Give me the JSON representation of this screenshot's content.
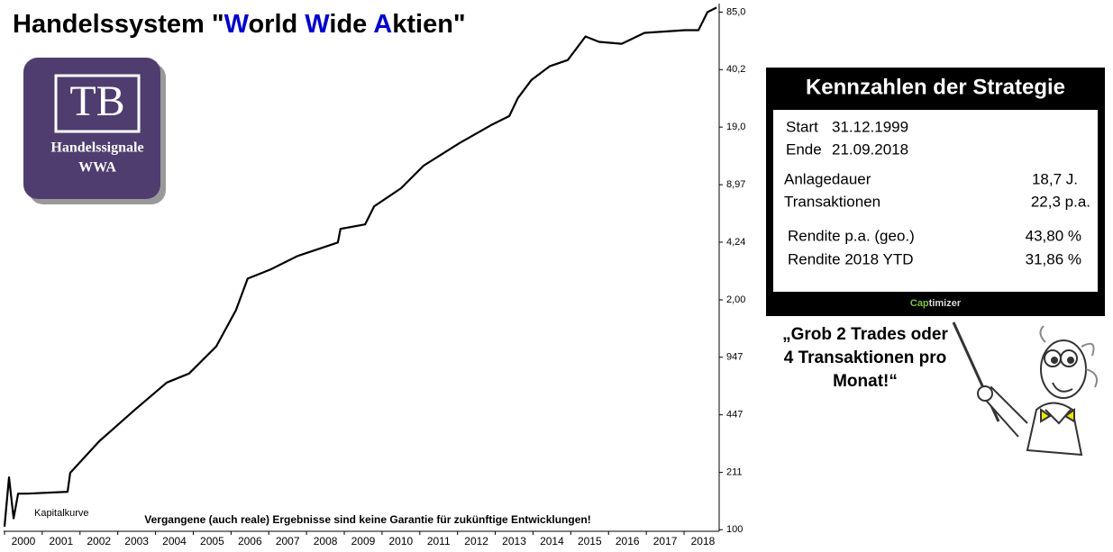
{
  "chart_data": {
    "type": "line",
    "title_parts": [
      "Handelssystem \"",
      "W",
      "orld ",
      "W",
      "ide ",
      "A",
      "ktien\""
    ],
    "title_highlight": [
      false,
      true,
      false,
      true,
      false,
      true,
      false
    ],
    "title_highlight_color": "#0000cc",
    "x": [
      2000.0,
      2000.12,
      2000.24,
      2000.36,
      2000.6,
      2001.67,
      2001.74,
      2002.51,
      2003.46,
      2004.3,
      2004.89,
      2005.61,
      2006.13,
      2006.44,
      2007.04,
      2007.76,
      2008.83,
      2008.9,
      2009.55,
      2009.79,
      2010.5,
      2011.1,
      2012.05,
      2012.89,
      2013.37,
      2013.6,
      2013.96,
      2014.44,
      2014.92,
      2015.39,
      2015.75,
      2016.35,
      2016.95,
      2018.02,
      2018.38,
      2018.62,
      2018.86
    ],
    "series": [
      {
        "name": "Kapitalkurve",
        "color": "#000000",
        "values": [
          104,
          198,
          116,
          160,
          160,
          164,
          210,
          317,
          479,
          681,
          766,
          1091,
          1747,
          2638,
          2967,
          3540,
          4225,
          5040,
          5346,
          6763,
          8556,
          11490,
          15420,
          19500,
          21950,
          27780,
          35160,
          41970,
          45520,
          61880,
          57660,
          56260,
          64860,
          67170,
          67170,
          84980,
          90190
        ]
      }
    ],
    "xlim": [
      2000,
      2018.93
    ],
    "xticks": [
      2000,
      2001,
      2002,
      2003,
      2004,
      2005,
      2006,
      2007,
      2008,
      2009,
      2010,
      2011,
      2012,
      2013,
      2014,
      2015,
      2016,
      2017,
      2018
    ],
    "ylim": [
      98,
      95000
    ],
    "log_y": true,
    "yticks": [
      100,
      211,
      447,
      947,
      {
        "value": 2000,
        "label": "2,00"
      },
      {
        "value": 4240,
        "label": "4,24"
      },
      {
        "value": 8970,
        "label": "8,97"
      },
      {
        "value": 19000,
        "label": "19,0"
      },
      {
        "value": 40200,
        "label": "40,2"
      },
      {
        "value": 85000,
        "label": "85,0"
      }
    ],
    "disclaimer": "Vergangene (auch reale) Ergebnisse sind keine Garantie für zukünftige Entwicklungen!"
  },
  "logo": {
    "initials": "TB",
    "line1": "Handelssignale",
    "line2": "WWA"
  },
  "panel": {
    "title": "Kennzahlen der Strategie",
    "rows": [
      [
        "Start",
        "31.12.1999"
      ],
      [
        "Ende",
        "21.09.2018"
      ],
      [
        "Anlagedauer",
        "18,7 J."
      ],
      [
        "Transaktionen",
        "22,3 p.a."
      ],
      [
        "Rendite p.a. (geo.)",
        "43,80 %"
      ],
      [
        "Rendite 2018 YTD",
        "31,86 %"
      ]
    ],
    "brand": [
      "Cap",
      "timizer"
    ]
  },
  "quote": [
    "„Grob 2 Trades oder",
    "4 Transaktionen pro",
    "Monat!“"
  ]
}
